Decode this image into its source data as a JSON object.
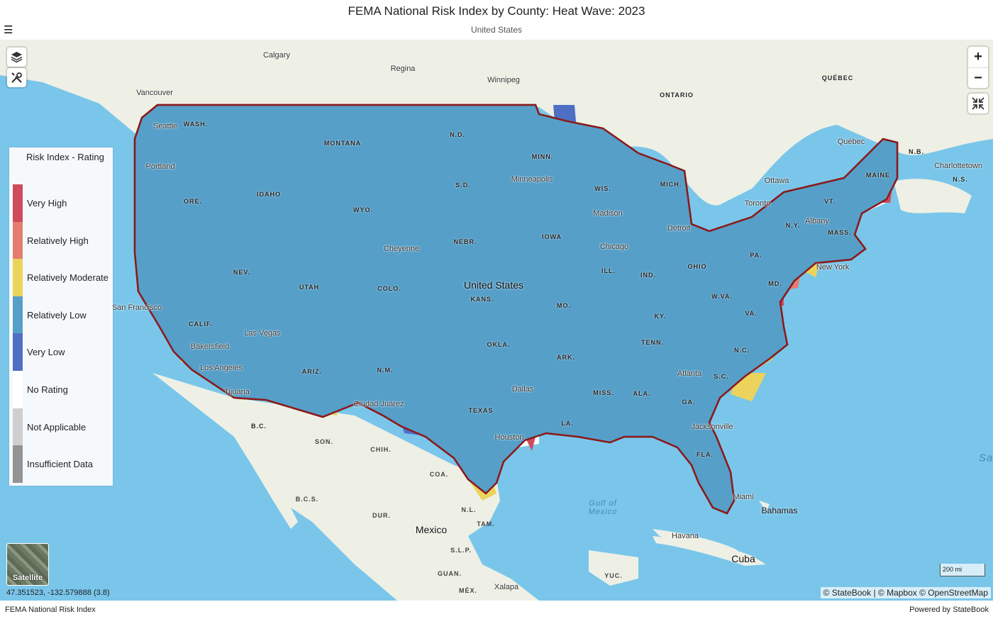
{
  "header": {
    "title": "FEMA National Risk Index by County: Heat Wave: 2023",
    "subtitle": "United States",
    "menu_icon": "hamburger-menu-icon"
  },
  "map_controls": {
    "layers_icon": "layers-icon",
    "tools_icon": "tools-icon",
    "zoom_in": "+",
    "zoom_out": "−",
    "collapse_icon": "collapse-arrows-icon"
  },
  "legend": {
    "title": "Risk Index - Rating",
    "items": [
      {
        "label": "Very High",
        "color": "#cf4b5e"
      },
      {
        "label": "Relatively High",
        "color": "#e47c70"
      },
      {
        "label": "Relatively Moderate",
        "color": "#ecd35b"
      },
      {
        "label": "Relatively Low",
        "color": "#559fc9"
      },
      {
        "label": "Very Low",
        "color": "#4f6fc4"
      },
      {
        "label": "No Rating",
        "color": "#ffffff"
      },
      {
        "label": "Not Applicable",
        "color": "#cfcfcf"
      },
      {
        "label": "Insufficient Data",
        "color": "#939393"
      }
    ]
  },
  "map": {
    "water_color": "#7ac6ea",
    "land_color": "#eef0e5",
    "border_color": "#8b1a1a",
    "labels": {
      "states": [
        "WASH.",
        "MONTANA",
        "N.D.",
        "MINN.",
        "IDAHO",
        "ORE.",
        "S.D.",
        "WIS.",
        "MICH.",
        "WYO.",
        "NEBR.",
        "IOWA",
        "NEV.",
        "UTAH",
        "COLO.",
        "ILL.",
        "IND.",
        "OHIO",
        "PA.",
        "N.Y.",
        "VT.",
        "MAINE",
        "MASS.",
        "CALIF.",
        "KANS.",
        "MO.",
        "KY.",
        "W.VA.",
        "VA.",
        "MD.",
        "ARIZ.",
        "N.M.",
        "OKLA.",
        "ARK.",
        "TENN.",
        "N.C.",
        "S.C.",
        "MISS.",
        "ALA.",
        "GA.",
        "TEXAS",
        "LA.",
        "FLA.",
        "ONTARIO",
        "QUÉBEC",
        "N.B.",
        "N.S.",
        "B.C."
      ],
      "cities": [
        "Calgary",
        "Regina",
        "Winnipeg",
        "Vancouver",
        "Seattle",
        "Portland",
        "Minneapolis",
        "Madison",
        "Chicago",
        "Detroit",
        "Toronto",
        "Ottawa",
        "Québec",
        "Charlottetown",
        "Albany",
        "New York",
        "Cheyenne",
        "San Francisco",
        "Las Vegas",
        "Bakersfield",
        "Los Angeles",
        "Tijuana",
        "Ciudad Juárez",
        "Dallas",
        "Houston",
        "Atlanta",
        "Jacksonville",
        "Miami",
        "Havana",
        "Xalapa",
        "Bahamas",
        "Cuba"
      ],
      "mexico_states": [
        "SON.",
        "CHIH.",
        "COA.",
        "B.C.S.",
        "N.L.",
        "DUR.",
        "TAM.",
        "S.L.P.",
        "GUAN.",
        "MÉX.",
        "YUC."
      ],
      "country_main": "United States",
      "country_mexico": "Mexico",
      "gulf": "Gulf of Mexico",
      "atlantic": "Sa"
    }
  },
  "satellite_toggle": {
    "label": "Satellite"
  },
  "coordinates": "47.351523, -132.579888  (3.8)",
  "scale": "200 mi",
  "attribution": "© StateBook | © Mapbox © OpenStreetMap",
  "footer": {
    "left": "FEMA National Risk Index",
    "right": "Powered by StateBook"
  }
}
